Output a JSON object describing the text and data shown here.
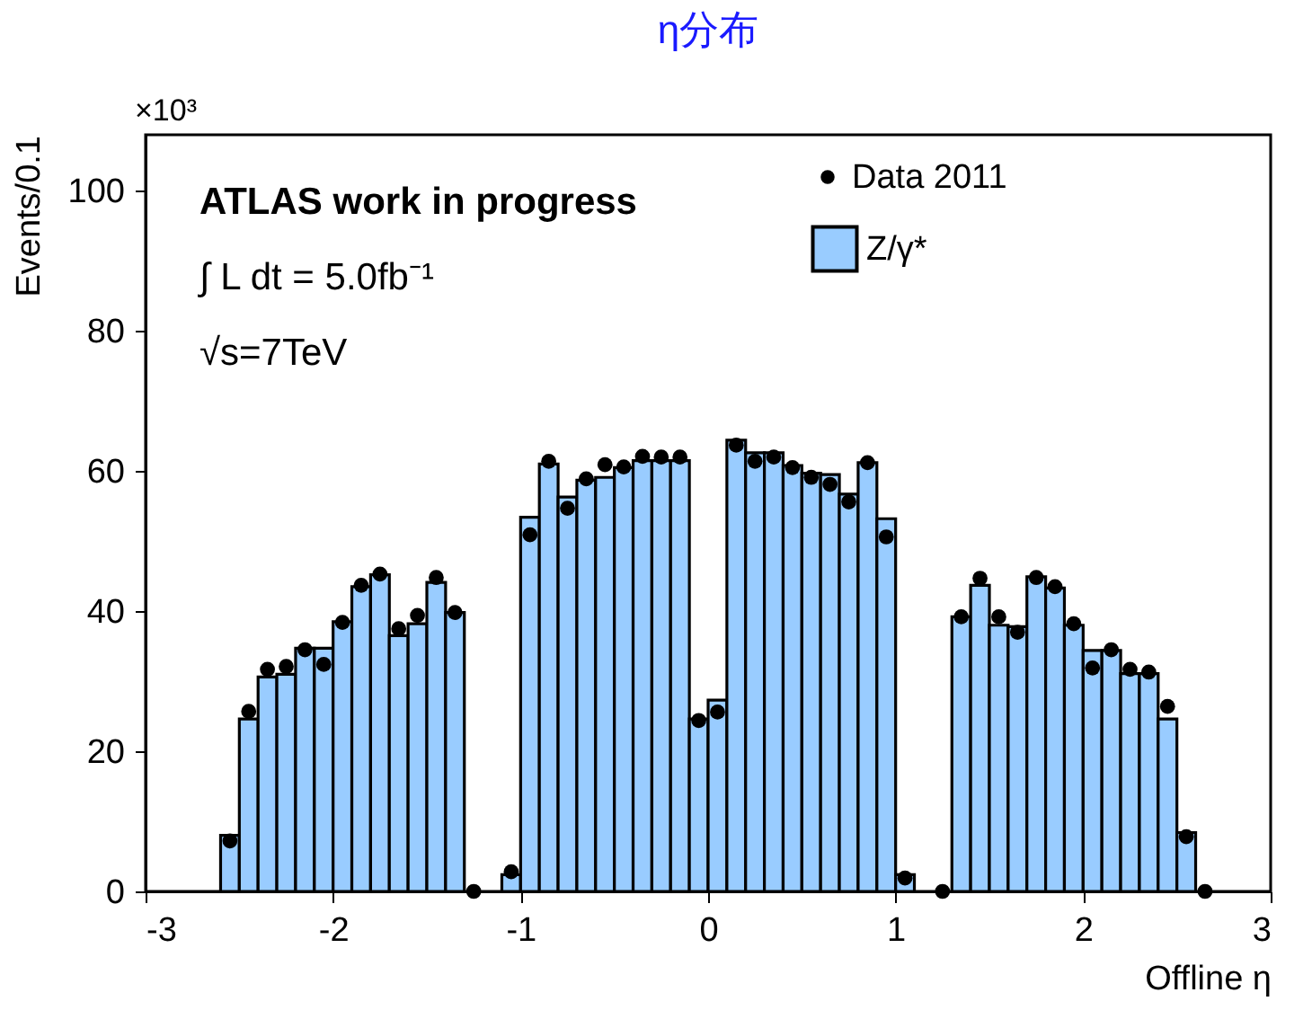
{
  "chart_data": {
    "type": "histogram",
    "title": "η分布",
    "xlabel": "Offline η",
    "ylabel": "Events/0.1",
    "bins": [
      -2.7,
      -2.6,
      -2.5,
      -2.4,
      -2.3,
      -2.2,
      -2.1,
      -2.0,
      -1.9,
      -1.8,
      -1.7,
      -1.6,
      -1.5,
      -1.4,
      -1.3,
      -1.2,
      -1.1,
      -1.0,
      -0.9,
      -0.8,
      -0.7,
      -0.6,
      -0.5,
      -0.4,
      -0.3,
      -0.2,
      -0.1,
      0.0,
      0.1,
      0.2,
      0.3,
      0.4,
      0.5,
      0.6,
      0.7,
      0.8,
      0.9,
      1.0,
      1.1,
      1.2,
      1.3,
      1.4,
      1.5,
      1.6,
      1.7,
      1.8,
      1.9,
      2.0,
      2.1,
      2.2,
      2.3,
      2.4,
      2.5,
      2.6,
      2.7
    ],
    "series": [
      {
        "name": "Data 2011",
        "type": "scatter",
        "color": "#000000",
        "x": [
          -2.55,
          -2.45,
          -2.35,
          -2.25,
          -2.15,
          -2.05,
          -1.95,
          -1.85,
          -1.75,
          -1.65,
          -1.55,
          -1.45,
          -1.35,
          -1.25,
          -1.05,
          -0.95,
          -0.85,
          -0.75,
          -0.65,
          -0.55,
          -0.45,
          -0.35,
          -0.25,
          -0.15,
          -0.05,
          0.05,
          0.15,
          0.25,
          0.35,
          0.45,
          0.55,
          0.65,
          0.75,
          0.85,
          0.95,
          1.05,
          1.25,
          1.35,
          1.45,
          1.55,
          1.65,
          1.75,
          1.85,
          1.95,
          2.05,
          2.15,
          2.25,
          2.35,
          2.45,
          2.55,
          2.65
        ],
        "values": [
          7.2,
          25.7,
          31.7,
          32.1,
          34.5,
          32.4,
          38.4,
          43.7,
          45.3,
          37.5,
          39.4,
          44.8,
          39.8,
          0,
          2.8,
          50.9,
          61.4,
          54.7,
          58.9,
          60.9,
          60.6,
          62.1,
          62.0,
          62.0,
          24.4,
          25.6,
          63.7,
          61.4,
          62.0,
          60.5,
          59.1,
          58.1,
          55.6,
          61.2,
          50.6,
          1.9,
          0,
          39.2,
          44.7,
          39.2,
          37.0,
          44.8,
          43.5,
          38.2,
          31.9,
          34.5,
          31.7,
          31.3,
          26.4,
          7.8,
          0
        ]
      },
      {
        "name": "Z/γ*",
        "color": "#99ccff",
        "values": [
          0,
          8.0,
          24.6,
          30.6,
          31.0,
          34.7,
          34.7,
          38.5,
          43.5,
          45.2,
          36.5,
          38.2,
          44.1,
          39.8,
          0,
          0,
          2.4,
          53.4,
          61.0,
          56.3,
          58.7,
          59.1,
          60.5,
          61.5,
          61.5,
          61.5,
          24.6,
          27.3,
          64.4,
          62.6,
          62.6,
          60.8,
          59.7,
          59.5,
          56.7,
          61.2,
          53.2,
          2.4,
          0,
          0,
          39.2,
          43.7,
          38.0,
          37.8,
          44.9,
          43.3,
          38.0,
          34.4,
          34.4,
          31.1,
          31.1,
          24.6,
          8.4,
          0
        ]
      }
    ],
    "xlim": [
      -3,
      3
    ],
    "xticks": [
      -3,
      -2,
      -1,
      0,
      1,
      2,
      3
    ],
    "ylim": [
      0,
      108
    ],
    "yticks": [
      0,
      20,
      40,
      60,
      80,
      100
    ],
    "marker": "circle",
    "legend": "top right",
    "grid": false,
    "annotations": [
      "×10³",
      "ATLAS work in progress",
      "∫ L dt = 5.0fb⁻¹",
      "√s=7TeV"
    ]
  }
}
